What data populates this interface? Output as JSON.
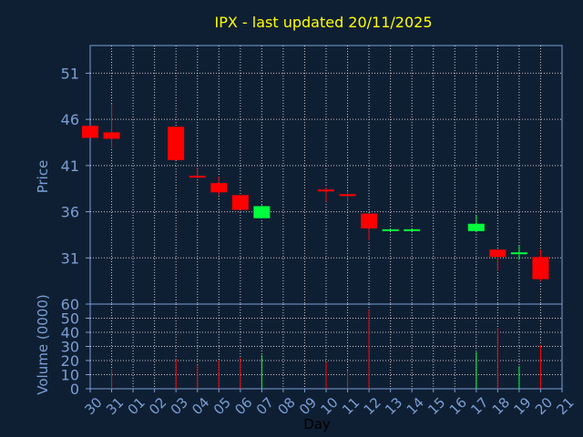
{
  "chart_data": [
    {
      "type": "candlestick",
      "title": "IPX - last updated 20/11/2025",
      "ylabel": "Price",
      "xlabel": "Day",
      "ylim": [
        26,
        54
      ],
      "yticks": [
        31,
        36,
        41,
        46,
        51
      ],
      "x_ticks": [
        "30",
        "31",
        "01",
        "02",
        "03",
        "04",
        "05",
        "06",
        "07",
        "08",
        "09",
        "10",
        "11",
        "12",
        "13",
        "14",
        "15",
        "16",
        "17",
        "18",
        "19",
        "20",
        "21"
      ],
      "grid": true,
      "colors": {
        "up": "#00ff3c",
        "down": "#ff0000",
        "title": "#ffff00",
        "axis_text": "#7a9fd4",
        "grid": "#ffffff",
        "background": "#0f1f33"
      },
      "candles": [
        {
          "day": "30",
          "open": 45.3,
          "high": 45.3,
          "low": 44.0,
          "close": 44.0
        },
        {
          "day": "31",
          "open": 44.6,
          "high": 47.7,
          "low": 42.9,
          "close": 43.9
        },
        {
          "day": "03",
          "open": 45.2,
          "high": 45.2,
          "low": 41.6,
          "close": 41.6
        },
        {
          "day": "04",
          "open": 39.9,
          "high": 40.8,
          "low": 39.6,
          "close": 39.7
        },
        {
          "day": "05",
          "open": 39.1,
          "high": 39.8,
          "low": 37.8,
          "close": 38.1
        },
        {
          "day": "06",
          "open": 37.8,
          "high": 37.8,
          "low": 36.2,
          "close": 36.2
        },
        {
          "day": "07",
          "open": 35.3,
          "high": 36.7,
          "low": 35.3,
          "close": 36.6
        },
        {
          "day": "10",
          "open": 38.4,
          "high": 38.6,
          "low": 37.1,
          "close": 38.3
        },
        {
          "day": "11",
          "open": 37.9,
          "high": 38.2,
          "low": 37.0,
          "close": 37.7
        },
        {
          "day": "12",
          "open": 35.8,
          "high": 35.8,
          "low": 32.9,
          "close": 34.2
        },
        {
          "day": "13",
          "open": 34.0,
          "high": 34.1,
          "low": 33.9,
          "close": 34.1
        },
        {
          "day": "14",
          "open": 34.0,
          "high": 34.2,
          "low": 33.9,
          "close": 34.1
        },
        {
          "day": "17",
          "open": 33.9,
          "high": 35.6,
          "low": 33.9,
          "close": 34.7
        },
        {
          "day": "18",
          "open": 31.9,
          "high": 31.9,
          "low": 29.6,
          "close": 31.1
        },
        {
          "day": "19",
          "open": 31.4,
          "high": 32.3,
          "low": 30.8,
          "close": 31.6
        },
        {
          "day": "20",
          "open": 31.1,
          "high": 31.9,
          "low": 28.5,
          "close": 28.7
        }
      ]
    },
    {
      "type": "bar",
      "ylabel": "Volume (0000)",
      "xlabel": "Day",
      "ylim": [
        0,
        60
      ],
      "yticks": [
        0,
        10,
        20,
        30,
        40,
        50,
        60
      ],
      "x_ticks": [
        "30",
        "31",
        "01",
        "02",
        "03",
        "04",
        "05",
        "06",
        "07",
        "08",
        "09",
        "10",
        "11",
        "12",
        "13",
        "14",
        "15",
        "16",
        "17",
        "18",
        "19",
        "20",
        "21"
      ],
      "grid": true,
      "bars": [
        {
          "day": "31",
          "value": 14,
          "color": "#ff0000"
        },
        {
          "day": "03",
          "value": 21,
          "color": "#ff0000"
        },
        {
          "day": "04",
          "value": 17,
          "color": "#ff0000"
        },
        {
          "day": "05",
          "value": 20,
          "color": "#ff0000"
        },
        {
          "day": "06",
          "value": 22,
          "color": "#ff0000"
        },
        {
          "day": "07",
          "value": 24,
          "color": "#00ff3c"
        },
        {
          "day": "10",
          "value": 19,
          "color": "#ff0000"
        },
        {
          "day": "11",
          "value": 13,
          "color": "#ff0000"
        },
        {
          "day": "12",
          "value": 56,
          "color": "#ff0000"
        },
        {
          "day": "17",
          "value": 26,
          "color": "#00ff3c"
        },
        {
          "day": "18",
          "value": 43,
          "color": "#ff0000"
        },
        {
          "day": "19",
          "value": 16,
          "color": "#00ff3c"
        },
        {
          "day": "20",
          "value": 31,
          "color": "#ff0000"
        }
      ]
    }
  ]
}
